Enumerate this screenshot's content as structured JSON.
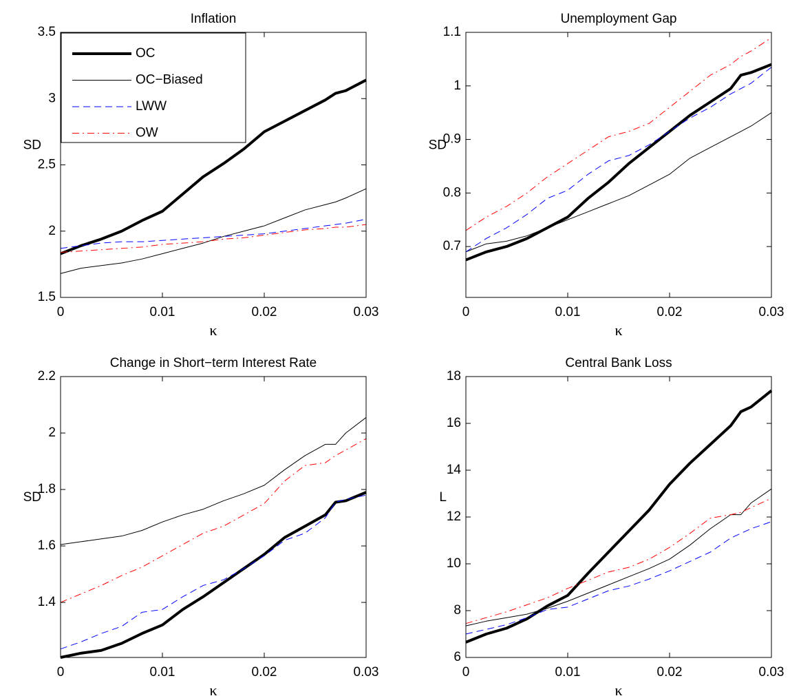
{
  "chart_data": [
    {
      "type": "line",
      "title": "Inflation",
      "xlabel": "κ",
      "ylabel": "SD",
      "legend": "upper left",
      "x": [
        0,
        0.002,
        0.004,
        0.006,
        0.008,
        0.01,
        0.012,
        0.014,
        0.016,
        0.018,
        0.02,
        0.022,
        0.024,
        0.026,
        0.027,
        0.028,
        0.03
      ],
      "xlim": [
        0,
        0.03
      ],
      "xticks": [
        0,
        0.01,
        0.02,
        0.03
      ],
      "ylim": [
        1.5,
        3.5
      ],
      "yticks": [
        1.5,
        2,
        2.5,
        3,
        3.5
      ],
      "series": [
        {
          "name": "OC",
          "color": "#000000",
          "width": 4,
          "linestyle": "solid",
          "values": [
            1.83,
            1.89,
            1.94,
            2.0,
            2.08,
            2.15,
            2.28,
            2.41,
            2.51,
            2.62,
            2.75,
            2.83,
            2.91,
            2.99,
            3.04,
            3.06,
            3.14
          ]
        },
        {
          "name": "OC−Biased",
          "color": "#000000",
          "width": 1,
          "linestyle": "solid",
          "values": [
            1.68,
            1.72,
            1.74,
            1.76,
            1.79,
            1.83,
            1.87,
            1.91,
            1.96,
            2.0,
            2.04,
            2.1,
            2.16,
            2.2,
            2.22,
            2.25,
            2.32
          ]
        },
        {
          "name": "LWW",
          "color": "#0000ff",
          "width": 1,
          "linestyle": "dashed",
          "values": [
            1.87,
            1.89,
            1.91,
            1.92,
            1.92,
            1.93,
            1.94,
            1.95,
            1.96,
            1.97,
            1.98,
            2.0,
            2.02,
            2.04,
            2.05,
            2.06,
            2.09
          ]
        },
        {
          "name": "OW",
          "color": "#ff0000",
          "width": 1,
          "linestyle": "dashdot",
          "values": [
            1.84,
            1.85,
            1.86,
            1.87,
            1.88,
            1.9,
            1.91,
            1.92,
            1.94,
            1.95,
            1.97,
            1.99,
            2.01,
            2.02,
            2.03,
            2.03,
            2.05
          ]
        }
      ]
    },
    {
      "type": "line",
      "title": "Unemployment Gap",
      "xlabel": "κ",
      "ylabel": "SD",
      "x": [
        0,
        0.002,
        0.004,
        0.006,
        0.008,
        0.01,
        0.012,
        0.014,
        0.016,
        0.018,
        0.02,
        0.022,
        0.024,
        0.026,
        0.027,
        0.028,
        0.03
      ],
      "xlim": [
        0,
        0.03
      ],
      "xticks": [
        0,
        0.01,
        0.02,
        0.03
      ],
      "ylim": [
        0.605,
        1.1
      ],
      "yticks": [
        0.7,
        0.8,
        0.9,
        1,
        1.1
      ],
      "series": [
        {
          "name": "OC",
          "color": "#000000",
          "width": 4,
          "linestyle": "solid",
          "values": [
            0.675,
            0.69,
            0.7,
            0.715,
            0.735,
            0.755,
            0.79,
            0.82,
            0.855,
            0.885,
            0.915,
            0.945,
            0.97,
            0.995,
            1.02,
            1.025,
            1.04
          ]
        },
        {
          "name": "OC−Biased",
          "color": "#000000",
          "width": 1,
          "linestyle": "solid",
          "values": [
            0.69,
            0.705,
            0.71,
            0.72,
            0.735,
            0.75,
            0.765,
            0.78,
            0.795,
            0.815,
            0.835,
            0.865,
            0.885,
            0.905,
            0.915,
            0.925,
            0.95
          ]
        },
        {
          "name": "LWW",
          "color": "#0000ff",
          "width": 1,
          "linestyle": "dashed",
          "values": [
            0.69,
            0.715,
            0.735,
            0.76,
            0.79,
            0.805,
            0.835,
            0.86,
            0.87,
            0.89,
            0.915,
            0.94,
            0.96,
            0.985,
            0.995,
            1.005,
            1.035
          ]
        },
        {
          "name": "OW",
          "color": "#ff0000",
          "width": 1,
          "linestyle": "dashdot",
          "values": [
            0.73,
            0.755,
            0.775,
            0.8,
            0.83,
            0.855,
            0.88,
            0.905,
            0.915,
            0.93,
            0.96,
            0.99,
            1.02,
            1.04,
            1.055,
            1.065,
            1.09
          ]
        }
      ]
    },
    {
      "type": "line",
      "title": "Change in Short−term Interest Rate",
      "xlabel": "κ",
      "ylabel": "SD",
      "x": [
        0,
        0.002,
        0.004,
        0.006,
        0.008,
        0.01,
        0.012,
        0.014,
        0.016,
        0.018,
        0.02,
        0.022,
        0.024,
        0.026,
        0.027,
        0.028,
        0.03
      ],
      "xlim": [
        0,
        0.03
      ],
      "xticks": [
        0,
        0.01,
        0.02,
        0.03
      ],
      "ylim": [
        1.205,
        2.2
      ],
      "yticks": [
        1.4,
        1.6,
        1.8,
        2,
        2.2
      ],
      "series": [
        {
          "name": "OC",
          "color": "#000000",
          "width": 4,
          "linestyle": "solid",
          "values": [
            1.205,
            1.22,
            1.23,
            1.255,
            1.29,
            1.32,
            1.375,
            1.42,
            1.47,
            1.52,
            1.57,
            1.63,
            1.67,
            1.71,
            1.755,
            1.76,
            1.79
          ]
        },
        {
          "name": "OC−Biased",
          "color": "#000000",
          "width": 1,
          "linestyle": "solid",
          "values": [
            1.605,
            1.615,
            1.625,
            1.635,
            1.655,
            1.685,
            1.71,
            1.73,
            1.76,
            1.785,
            1.815,
            1.87,
            1.92,
            1.96,
            1.96,
            2.0,
            2.055
          ]
        },
        {
          "name": "LWW",
          "color": "#0000ff",
          "width": 1,
          "linestyle": "dashed",
          "values": [
            1.235,
            1.26,
            1.29,
            1.315,
            1.365,
            1.375,
            1.42,
            1.46,
            1.48,
            1.52,
            1.565,
            1.62,
            1.645,
            1.7,
            1.755,
            1.765,
            1.78
          ]
        },
        {
          "name": "OW",
          "color": "#ff0000",
          "width": 1,
          "linestyle": "dashdot",
          "values": [
            1.4,
            1.43,
            1.46,
            1.495,
            1.525,
            1.565,
            1.605,
            1.645,
            1.67,
            1.71,
            1.75,
            1.83,
            1.885,
            1.895,
            1.92,
            1.94,
            1.98
          ]
        }
      ]
    },
    {
      "type": "line",
      "title": "Central Bank Loss",
      "xlabel": "κ",
      "ylabel": "L",
      "x": [
        0,
        0.002,
        0.004,
        0.006,
        0.008,
        0.01,
        0.012,
        0.014,
        0.016,
        0.018,
        0.02,
        0.022,
        0.024,
        0.026,
        0.027,
        0.028,
        0.03
      ],
      "xlim": [
        0,
        0.03
      ],
      "xticks": [
        0,
        0.01,
        0.02,
        0.03
      ],
      "ylim": [
        6,
        18
      ],
      "yticks": [
        6,
        8,
        10,
        12,
        14,
        16,
        18
      ],
      "series": [
        {
          "name": "OC",
          "color": "#000000",
          "width": 4,
          "linestyle": "solid",
          "values": [
            6.65,
            7.0,
            7.25,
            7.65,
            8.2,
            8.65,
            9.6,
            10.5,
            11.4,
            12.3,
            13.4,
            14.3,
            15.1,
            15.9,
            16.5,
            16.7,
            17.4
          ]
        },
        {
          "name": "OC−Biased",
          "color": "#000000",
          "width": 1,
          "linestyle": "solid",
          "values": [
            7.35,
            7.55,
            7.7,
            7.85,
            8.1,
            8.4,
            8.75,
            9.1,
            9.45,
            9.8,
            10.2,
            10.8,
            11.5,
            12.1,
            12.1,
            12.6,
            13.2
          ]
        },
        {
          "name": "LWW",
          "color": "#0000ff",
          "width": 1,
          "linestyle": "dashed",
          "values": [
            7.0,
            7.2,
            7.4,
            7.7,
            8.05,
            8.15,
            8.5,
            8.85,
            9.05,
            9.35,
            9.7,
            10.1,
            10.5,
            11.1,
            11.3,
            11.5,
            11.8
          ]
        },
        {
          "name": "OW",
          "color": "#ff0000",
          "width": 1,
          "linestyle": "dashdot",
          "values": [
            7.45,
            7.7,
            7.95,
            8.25,
            8.55,
            8.95,
            9.3,
            9.65,
            9.85,
            10.2,
            10.7,
            11.3,
            11.95,
            12.1,
            12.2,
            12.4,
            12.8
          ]
        }
      ]
    }
  ]
}
